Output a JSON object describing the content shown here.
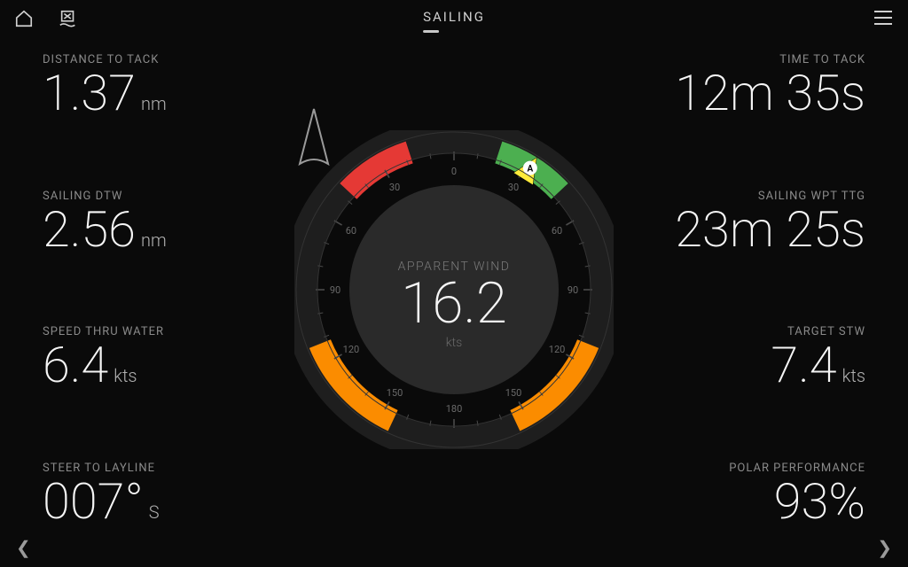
{
  "header": {
    "title": "SAILING"
  },
  "left_metrics": [
    {
      "label": "DISTANCE TO TACK",
      "value": "1.37",
      "unit": "nm"
    },
    {
      "label": "SAILING DTW",
      "value": "2.56",
      "unit": "nm"
    },
    {
      "label": "SPEED THRU WATER",
      "value": "6.4",
      "unit": "kts"
    },
    {
      "label": "STEER TO LAYLINE",
      "value": "007°",
      "unit": "S"
    }
  ],
  "right_metrics": [
    {
      "label": "TIME TO TACK",
      "value": "12m 35s",
      "unit": ""
    },
    {
      "label": "SAILING WPT TTG",
      "value": "23m 25s",
      "unit": ""
    },
    {
      "label": "TARGET STW",
      "value": "7.4",
      "unit": "kts"
    },
    {
      "label": "POLAR PERFORMANCE",
      "value": "93%",
      "unit": ""
    }
  ],
  "gauge": {
    "label": "APPARENT WIND",
    "value": "16.2",
    "unit": "kts",
    "radius": 180,
    "outer_ring_color": "#1c1c1c",
    "inner_circle_color": "#2a2a2a",
    "tick_color": "#555555",
    "tick_labels": [
      "0",
      "30",
      "60",
      "90",
      "120",
      "150",
      "180",
      "150",
      "120",
      "90",
      "60",
      "30"
    ],
    "red_arc": {
      "start_deg": -47,
      "end_deg": -18,
      "color": "#e53935"
    },
    "green_arc": {
      "start_deg": 18,
      "end_deg": 47,
      "color": "#4caf50"
    },
    "orange_left": {
      "start_deg": -155,
      "end_deg": -112,
      "color": "#fb8c00"
    },
    "orange_right": {
      "start_deg": 112,
      "end_deg": 155,
      "color": "#fb8c00"
    },
    "pointer_angle_deg": 32,
    "pointer_color": "#ffeb3b",
    "pointer_label": "A",
    "boat_color": "#888888"
  },
  "colors": {
    "bg": "#0a0a0a",
    "text": "#e8e8e8",
    "muted": "#8a8a8a"
  }
}
